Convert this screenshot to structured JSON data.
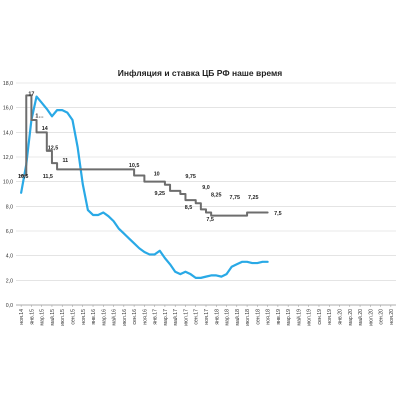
{
  "chart_data": {
    "type": "line",
    "title": "Инфляция и ставка ЦБ РФ наше время",
    "xlabel": "",
    "ylabel": "",
    "ylim": [
      0,
      18
    ],
    "y_ticks": [
      "0,0",
      "2,0",
      "4,0",
      "6,0",
      "8,0",
      "10,0",
      "12,0",
      "14,0",
      "16,0",
      "18,0"
    ],
    "grid": true,
    "legend": "none",
    "categories": [
      "ноя.14",
      "янв.15",
      "мар.15",
      "май.15",
      "июл.15",
      "сен.15",
      "ноя.15",
      "янв.16",
      "мар.16",
      "май.16",
      "июл.16",
      "сен.16",
      "ноя.16",
      "янв.17",
      "мар.17",
      "май.17",
      "июл.17",
      "сен.17",
      "ноя.17",
      "янв.18",
      "мар.18",
      "май.18",
      "июл.18",
      "сен.18",
      "ноя.18",
      "янв.19",
      "мар.19",
      "май.19",
      "июл.19",
      "сен.19",
      "ноя.19",
      "янв.20",
      "мар.20",
      "май.20",
      "июл.20",
      "сен.20",
      "ноя.20"
    ],
    "series": [
      {
        "color": "#29a9e6",
        "x": [
          0,
          0.5,
          1,
          1.5,
          2,
          2.5,
          3,
          3.5,
          4,
          4.5,
          5,
          5.5,
          6,
          6.5,
          7,
          7.5,
          8,
          8.5,
          9,
          9.5,
          10,
          10.5,
          11,
          11.5,
          12,
          12.5,
          13,
          13.5,
          14,
          14.5,
          15,
          15.5,
          16,
          16.5,
          17,
          17.5,
          18,
          18.5,
          19,
          19.5,
          20,
          20.5,
          21,
          21.5,
          22,
          22.5,
          23,
          23.5,
          24
        ],
        "values": [
          9.1,
          11.4,
          15.0,
          16.9,
          16.4,
          15.9,
          15.3,
          15.8,
          15.8,
          15.6,
          15.0,
          12.8,
          9.8,
          7.7,
          7.3,
          7.3,
          7.5,
          7.2,
          6.8,
          6.2,
          5.8,
          5.4,
          5.0,
          4.6,
          4.3,
          4.1,
          4.1,
          4.4,
          3.8,
          3.3,
          2.7,
          2.5,
          2.7,
          2.5,
          2.2,
          2.2,
          2.3,
          2.4,
          2.4,
          2.3,
          2.5,
          3.1,
          3.3,
          3.5,
          3.5,
          3.4,
          3.4,
          3.5,
          3.5
        ]
      },
      {
        "color": "#6d6d6d",
        "x": [
          0,
          0.5,
          0.5,
          1,
          1,
          1.5,
          1.5,
          2,
          2,
          2.5,
          2.5,
          3,
          3,
          3.5,
          3.5,
          4,
          4,
          11,
          11,
          12,
          12,
          14,
          14,
          14.5,
          14.5,
          15.5,
          15.5,
          16,
          16,
          17,
          17,
          17.5,
          17.5,
          18,
          18,
          18.5,
          18.5,
          19.5,
          19.5,
          22,
          22,
          24
        ],
        "values": [
          10.5,
          10.5,
          17,
          17,
          15,
          15,
          14,
          14,
          14,
          14,
          12.5,
          12.5,
          11.5,
          11.5,
          11,
          11,
          11,
          11,
          10.5,
          10.5,
          10,
          10,
          9.75,
          9.75,
          9.25,
          9.25,
          9,
          9,
          8.5,
          8.5,
          8.25,
          8.25,
          7.75,
          7.75,
          7.5,
          7.5,
          7.25,
          7.25,
          7.25,
          7.25,
          7.5,
          7.5
        ]
      }
    ],
    "annotations": [
      {
        "text": "17",
        "x": 1,
        "y": 17
      },
      {
        "text": "1…",
        "x": 1.8,
        "y": 15.2
      },
      {
        "text": "14",
        "x": 2.3,
        "y": 14.2
      },
      {
        "text": "12,5",
        "x": 3.1,
        "y": 12.6
      },
      {
        "text": "11",
        "x": 4.3,
        "y": 11.6
      },
      {
        "text": "10,5",
        "x": 0.2,
        "y": 10.3
      },
      {
        "text": "11,5",
        "x": 2.6,
        "y": 10.3
      },
      {
        "text": "10,5",
        "x": 11,
        "y": 11.2
      },
      {
        "text": "10",
        "x": 13.2,
        "y": 10.5
      },
      {
        "text": "9,75",
        "x": 16.5,
        "y": 10.3
      },
      {
        "text": "9,25",
        "x": 13.5,
        "y": 8.9
      },
      {
        "text": "9,0",
        "x": 18,
        "y": 9.4
      },
      {
        "text": "8,5",
        "x": 16.3,
        "y": 7.8
      },
      {
        "text": "8,25",
        "x": 19,
        "y": 8.8
      },
      {
        "text": "7,75",
        "x": 20.8,
        "y": 8.6
      },
      {
        "text": "7,25",
        "x": 22.6,
        "y": 8.6
      },
      {
        "text": "7,5",
        "x": 18.4,
        "y": 6.8
      },
      {
        "text": "7,5",
        "x": 25,
        "y": 7.3
      }
    ]
  }
}
